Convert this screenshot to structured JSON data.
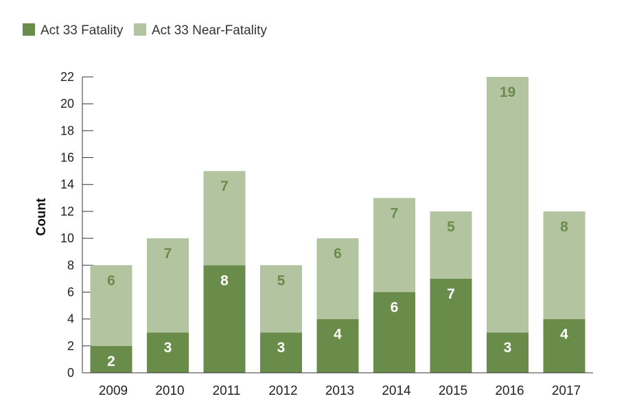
{
  "chart_data": {
    "type": "bar",
    "stacked": true,
    "title": "",
    "xlabel": "",
    "ylabel": "Count",
    "ylim": [
      0,
      22
    ],
    "yticks": [
      0,
      2,
      4,
      6,
      8,
      10,
      12,
      14,
      16,
      18,
      20,
      22
    ],
    "grid": false,
    "legend_position": "top-left",
    "categories": [
      "2009",
      "2010",
      "2011",
      "2012",
      "2013",
      "2014",
      "2015",
      "2016",
      "2017"
    ],
    "series": [
      {
        "name": "Act 33 Fatality",
        "color": "#6a8c4a",
        "label_color": "#ffffff",
        "values": [
          2,
          3,
          8,
          3,
          4,
          6,
          7,
          3,
          4
        ]
      },
      {
        "name": "Act 33 Near-Fatality",
        "color": "#b3c4a1",
        "label_color": "#6a8c4a",
        "values": [
          6,
          7,
          7,
          5,
          6,
          7,
          5,
          19,
          8
        ]
      }
    ]
  }
}
